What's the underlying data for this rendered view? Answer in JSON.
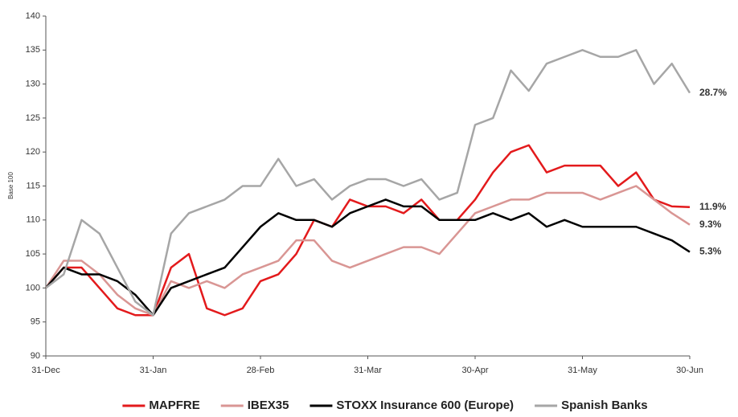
{
  "chart_data": {
    "type": "line",
    "y_label": "Base 100",
    "categories": [
      "31-Dec",
      null,
      null,
      null,
      null,
      null,
      "31-Jan",
      null,
      null,
      null,
      null,
      null,
      "28-Feb",
      null,
      null,
      null,
      null,
      null,
      "31-Mar",
      null,
      null,
      null,
      null,
      null,
      "30-Apr",
      null,
      null,
      null,
      null,
      null,
      "31-May",
      null,
      null,
      null,
      null,
      null,
      "30-Jun"
    ],
    "ylim": [
      90,
      140
    ],
    "yticks": [
      90,
      95,
      100,
      105,
      110,
      115,
      120,
      125,
      130,
      135,
      140
    ],
    "grid": false,
    "legend": "bottom",
    "series": [
      {
        "name": "MAPFRE",
        "color": "#e31a1c",
        "end_label": "11.9%",
        "values": [
          100,
          103,
          103,
          100,
          97,
          96,
          96,
          103,
          105,
          97,
          96,
          97,
          101,
          102,
          105,
          110,
          109,
          113,
          112,
          112,
          111,
          113,
          110,
          110,
          113,
          117,
          120,
          121,
          117,
          118,
          118,
          118,
          115,
          117,
          113,
          112,
          111.9
        ]
      },
      {
        "name": "IBEX35",
        "color": "#d99694",
        "end_label": "9.3%",
        "values": [
          100,
          104,
          104,
          102,
          99,
          97,
          96,
          101,
          100,
          101,
          100,
          102,
          103,
          104,
          107,
          107,
          104,
          103,
          104,
          105,
          106,
          106,
          105,
          108,
          111,
          112,
          113,
          113,
          114,
          114,
          114,
          113,
          114,
          115,
          113,
          111,
          109.3
        ]
      },
      {
        "name": "STOXX Insurance 600 (Europe)",
        "color": "#000000",
        "end_label": "5.3%",
        "values": [
          100,
          103,
          102,
          102,
          101,
          99,
          96,
          100,
          101,
          102,
          103,
          106,
          109,
          111,
          110,
          110,
          109,
          111,
          112,
          113,
          112,
          112,
          110,
          110,
          110,
          111,
          110,
          111,
          109,
          110,
          109,
          109,
          109,
          109,
          108,
          107,
          105.3
        ]
      },
      {
        "name": "Spanish Banks",
        "color": "#a6a6a6",
        "end_label": "28.7%",
        "values": [
          100,
          102,
          110,
          108,
          103,
          98,
          96,
          108,
          111,
          112,
          113,
          115,
          115,
          119,
          115,
          116,
          113,
          115,
          116,
          116,
          115,
          116,
          113,
          114,
          124,
          125,
          132,
          129,
          133,
          134,
          135,
          134,
          134,
          135,
          130,
          133,
          128.7
        ]
      }
    ]
  }
}
